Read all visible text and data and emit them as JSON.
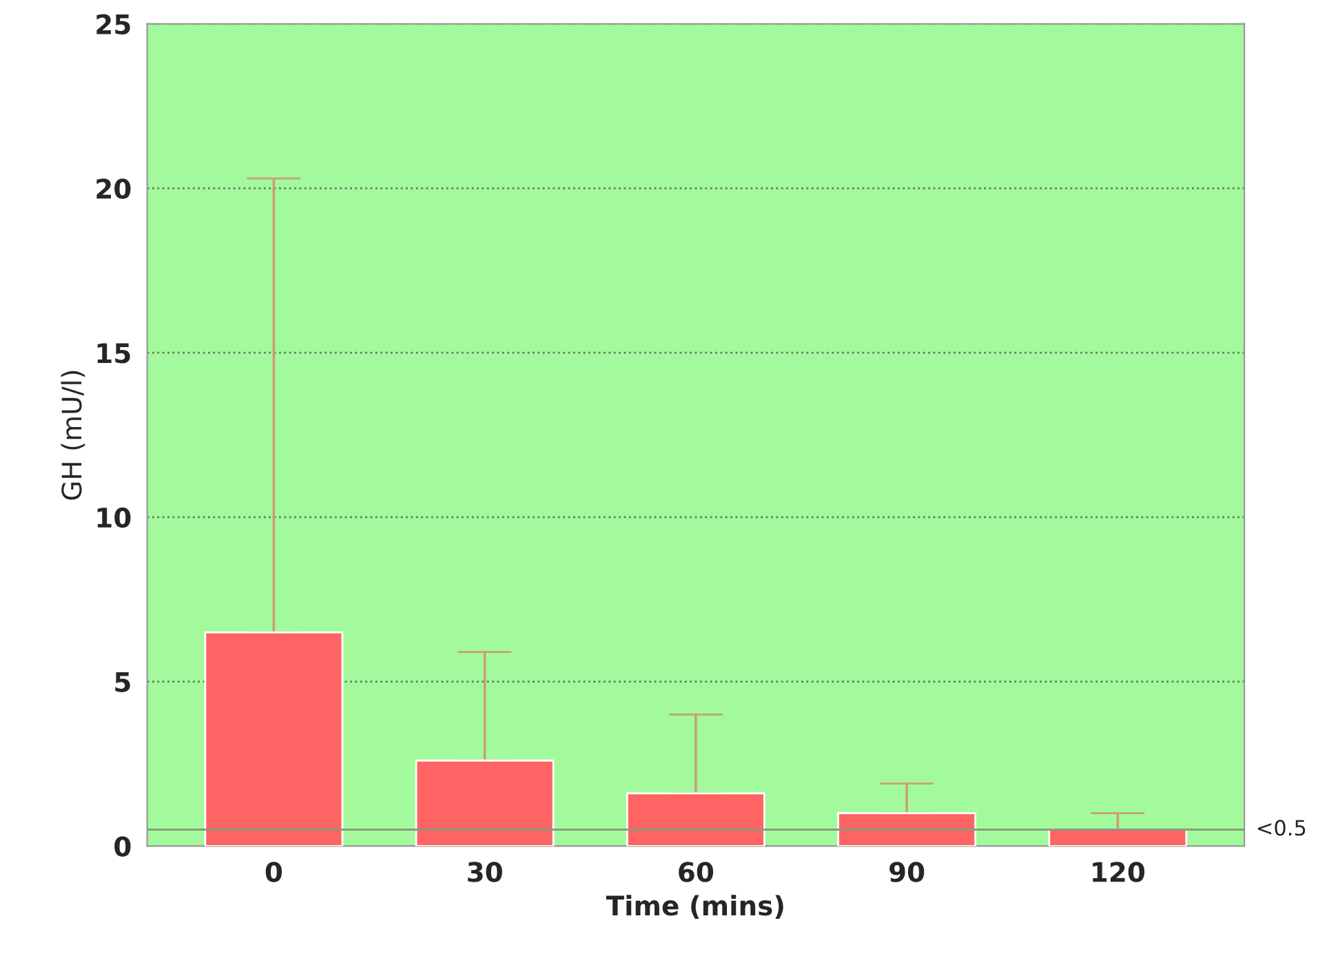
{
  "chart_data": {
    "type": "bar",
    "xlabel": "Time (mins)",
    "ylabel": "GH (mU/l)",
    "categories": [
      "0",
      "30",
      "60",
      "90",
      "120"
    ],
    "values": [
      6.5,
      2.6,
      1.6,
      1.0,
      0.5
    ],
    "errors": [
      [
        6.5,
        20.3
      ],
      [
        2.6,
        5.9
      ],
      [
        1.6,
        4.0
      ],
      [
        1.0,
        1.9
      ],
      [
        0.5,
        1.0
      ]
    ],
    "color": "#ff6464",
    "ylim": [
      0,
      25
    ],
    "yticks": [
      0,
      5,
      10,
      15,
      20,
      25
    ],
    "grid": "y",
    "ref_lines": [
      {
        "axis": "y",
        "value": 0.5,
        "label": "<0.5",
        "color": "#8a9a80"
      }
    ]
  }
}
